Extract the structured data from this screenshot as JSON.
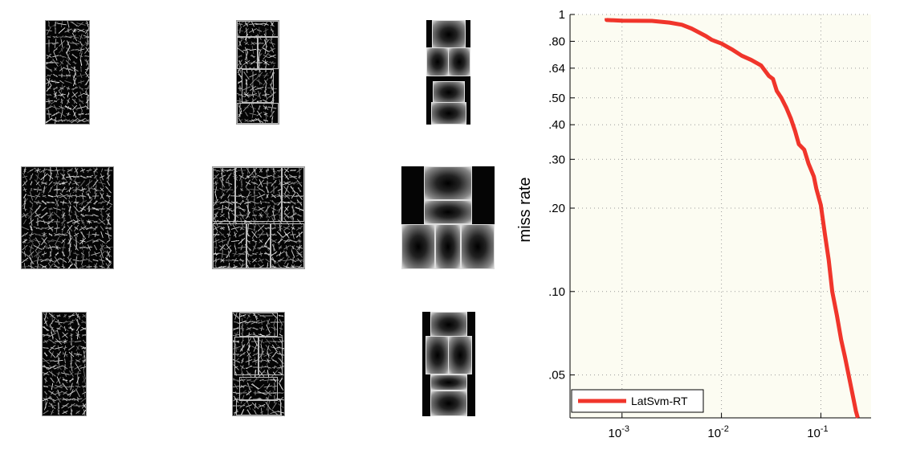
{
  "chart_data": {
    "type": "line",
    "title": "",
    "xlabel": "",
    "ylabel": "miss rate",
    "x_scale": "log",
    "y_scale": "log",
    "xlim": [
      0.0003,
      0.32
    ],
    "ylim": [
      0.035,
      1.0
    ],
    "x_ticks": [
      {
        "value": 0.001,
        "base": "10",
        "exp": "-3"
      },
      {
        "value": 0.01,
        "base": "10",
        "exp": "-2"
      },
      {
        "value": 0.1,
        "base": "10",
        "exp": "-1"
      }
    ],
    "y_ticks": [
      {
        "value": 1.0,
        "label": "1"
      },
      {
        "value": 0.8,
        "label": ".80"
      },
      {
        "value": 0.64,
        "label": ".64"
      },
      {
        "value": 0.5,
        "label": ".50"
      },
      {
        "value": 0.4,
        "label": ".40"
      },
      {
        "value": 0.3,
        "label": ".30"
      },
      {
        "value": 0.2,
        "label": ".20"
      },
      {
        "value": 0.1,
        "label": ".10"
      },
      {
        "value": 0.05,
        "label": ".05"
      }
    ],
    "grid": true,
    "legend_position": "bottom-left",
    "colors": {
      "series": "#f0352b",
      "plot_bg": "#fcfcf2",
      "grid": "#9a9a9a"
    },
    "series": [
      {
        "name": "LatSvm-RT",
        "x": [
          0.0007,
          0.0007,
          0.001,
          0.002,
          0.003,
          0.004,
          0.005,
          0.006,
          0.007,
          0.008,
          0.01,
          0.013,
          0.016,
          0.02,
          0.025,
          0.03,
          0.033,
          0.036,
          0.04,
          0.045,
          0.05,
          0.055,
          0.06,
          0.068,
          0.075,
          0.085,
          0.09,
          0.1,
          0.11,
          0.12,
          0.13,
          0.145,
          0.16,
          0.175,
          0.19,
          0.21,
          0.225,
          0.235
        ],
        "y": [
          0.97,
          0.955,
          0.95,
          0.948,
          0.935,
          0.918,
          0.89,
          0.86,
          0.835,
          0.81,
          0.785,
          0.745,
          0.71,
          0.685,
          0.655,
          0.6,
          0.585,
          0.53,
          0.5,
          0.46,
          0.42,
          0.38,
          0.34,
          0.325,
          0.29,
          0.26,
          0.235,
          0.205,
          0.16,
          0.13,
          0.1,
          0.082,
          0.067,
          0.058,
          0.05,
          0.042,
          0.037,
          0.033
        ]
      }
    ]
  }
}
